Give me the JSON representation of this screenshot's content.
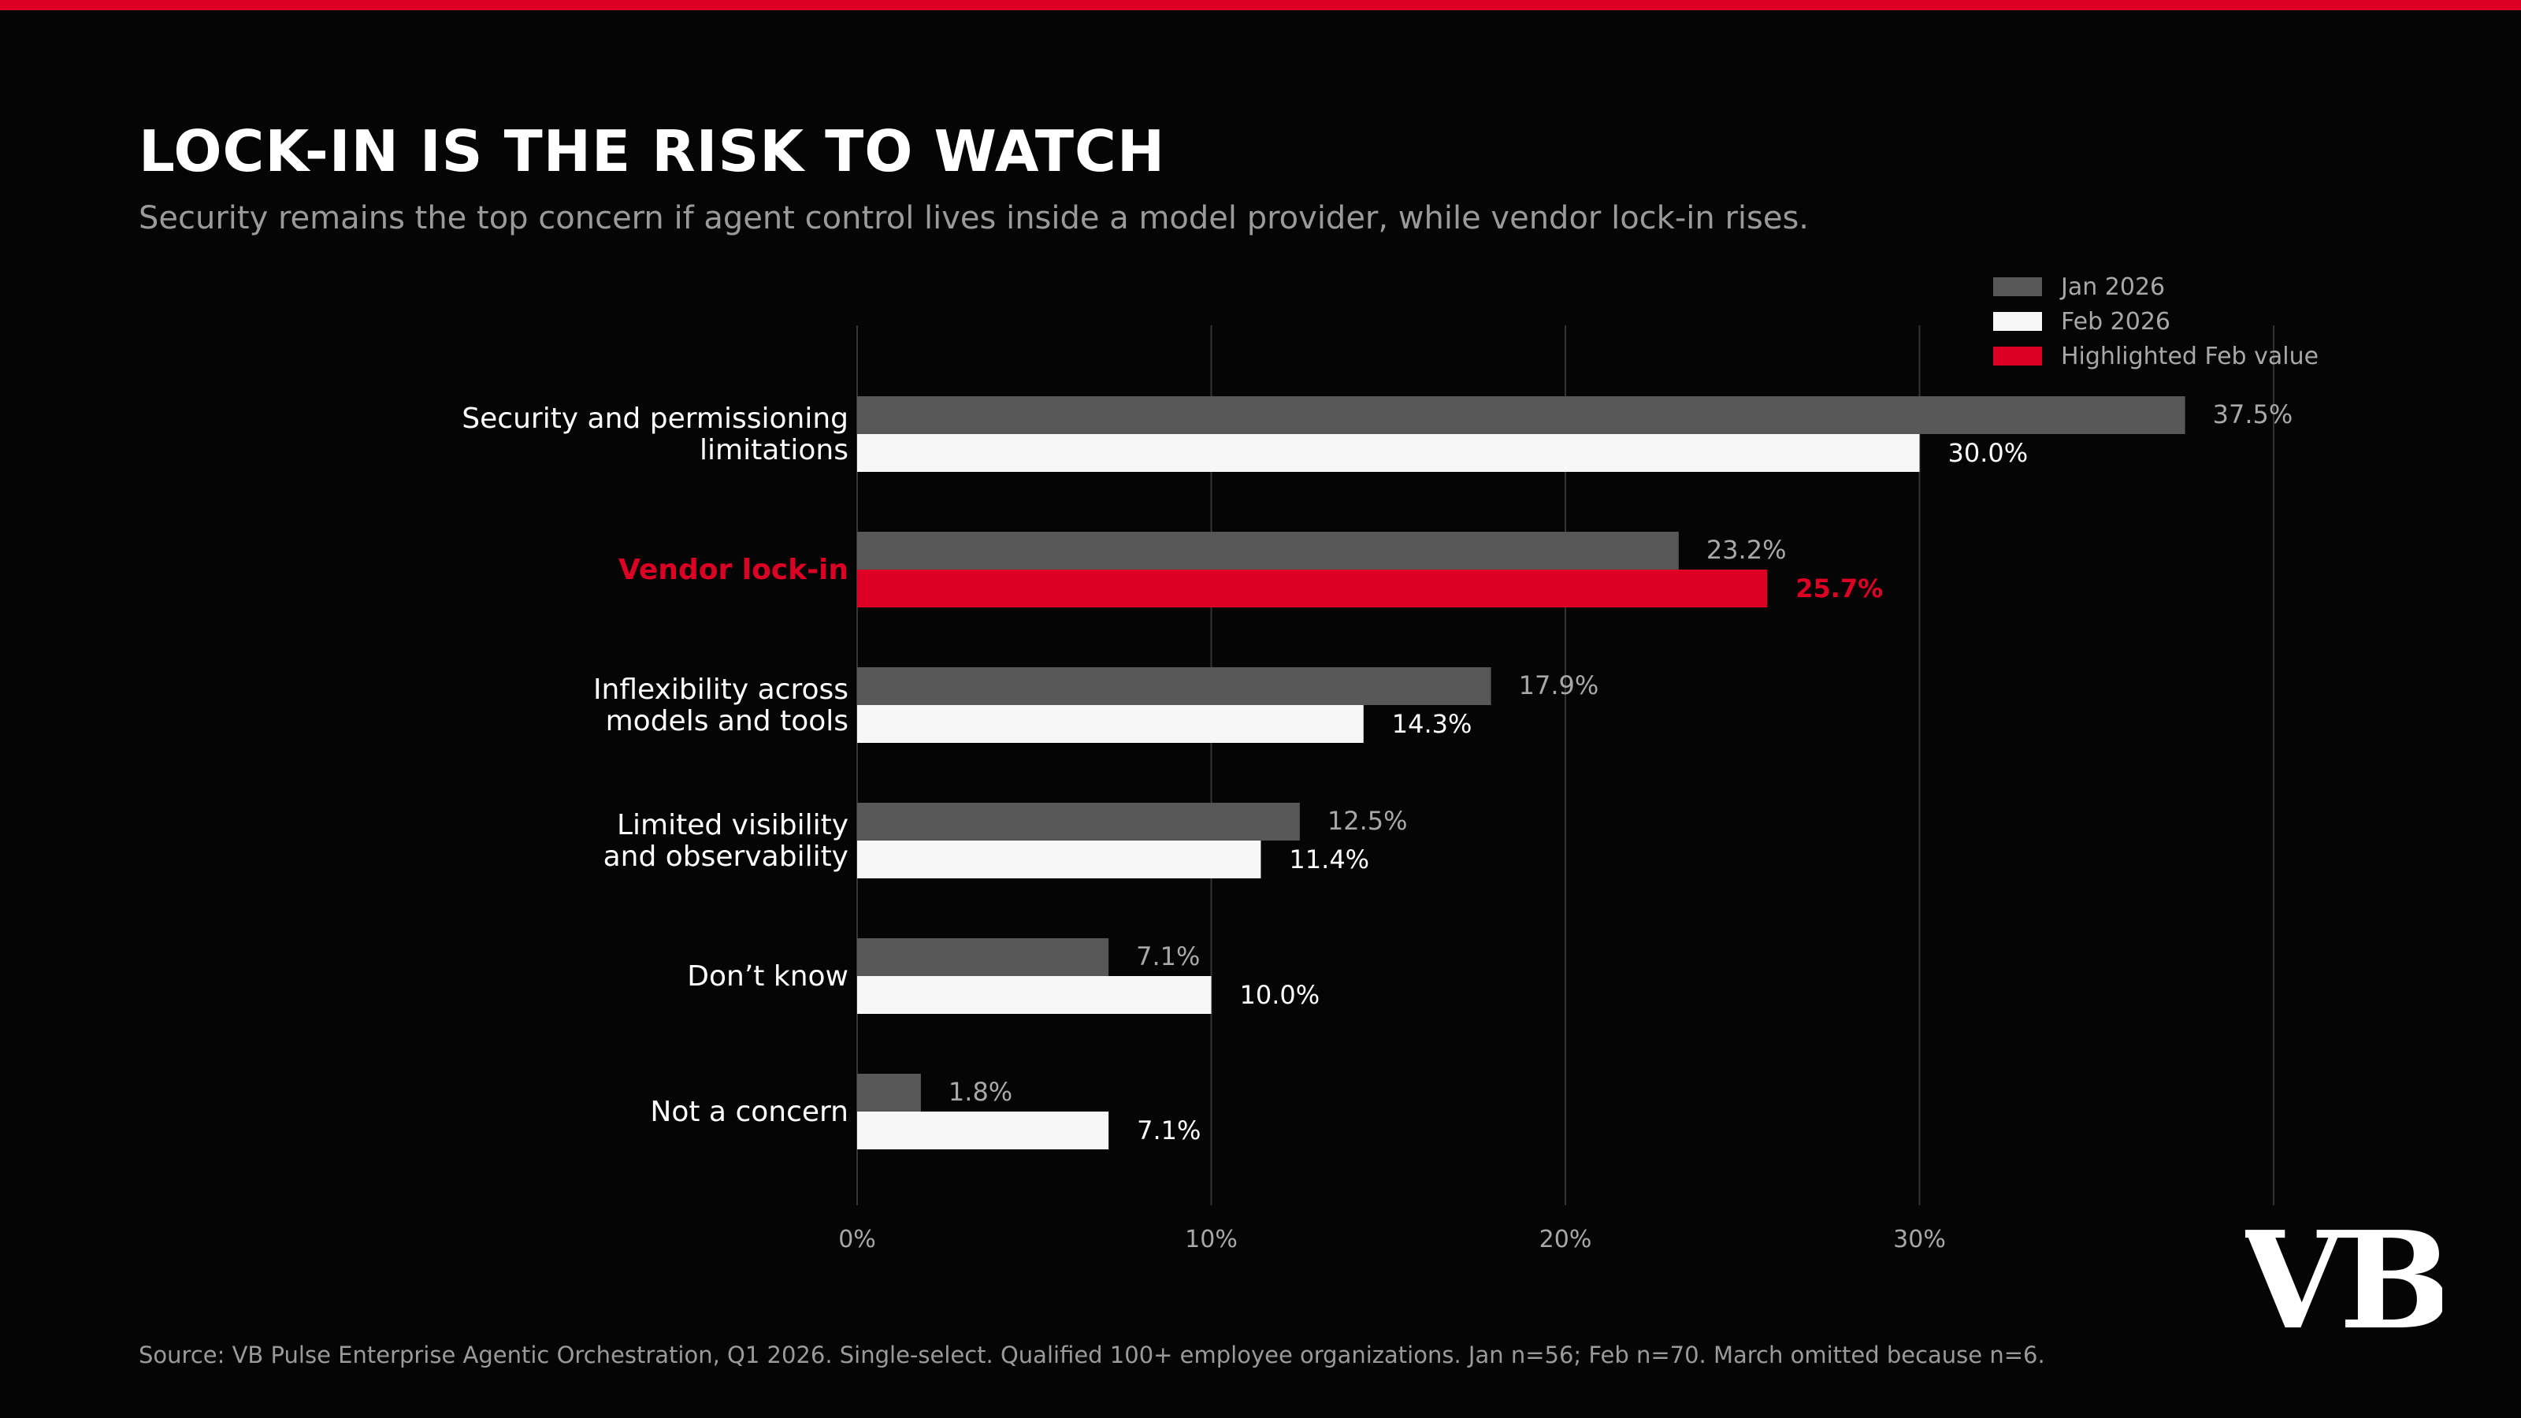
{
  "title": "LOCK-IN IS THE RISK TO WATCH",
  "subtitle": "Security remains the top concern if agent control lives inside a model provider, while vendor lock-in rises.",
  "source": "Source: VB Pulse Enterprise Agentic Orchestration, Q1 2026. Single-select. Qualified 100+ employee organizations. Jan n=56; Feb n=70. March omitted because n=6.",
  "logo_text": "VB",
  "colors": {
    "accent": "#dc0024",
    "jan": "#575757",
    "feb": "#f7f7f7",
    "grid": "#333333",
    "background": "#050505"
  },
  "chart_data": {
    "type": "bar",
    "orientation": "horizontal",
    "categories": [
      [
        "Security and permissioning",
        "limitations"
      ],
      [
        "Vendor lock-in"
      ],
      [
        "Inflexibility across",
        "models and tools"
      ],
      [
        "Limited visibility",
        "and observability"
      ],
      [
        "Don’t know"
      ],
      [
        "Not a concern"
      ]
    ],
    "highlight_category_index": 1,
    "series": [
      {
        "name": "Jan 2026",
        "values": [
          37.5,
          23.2,
          17.9,
          12.5,
          7.1,
          1.8
        ],
        "labels": [
          "37.5%",
          "23.2%",
          "17.9%",
          "12.5%",
          "7.1%",
          "1.8%"
        ]
      },
      {
        "name": "Feb 2026",
        "values": [
          30.0,
          25.7,
          14.3,
          11.4,
          10.0,
          7.1
        ],
        "labels": [
          "30.0%",
          "25.7%",
          "14.3%",
          "11.4%",
          "10.0%",
          "7.1%"
        ]
      }
    ],
    "legend": [
      "Jan 2026",
      "Feb 2026",
      "Highlighted Feb value"
    ],
    "legend_position": "top-right",
    "xlim": [
      0,
      40
    ],
    "x_ticks": [
      0,
      10,
      20,
      30
    ],
    "x_tick_labels": [
      "0%",
      "10%",
      "20%",
      "30%"
    ],
    "grid": true
  }
}
